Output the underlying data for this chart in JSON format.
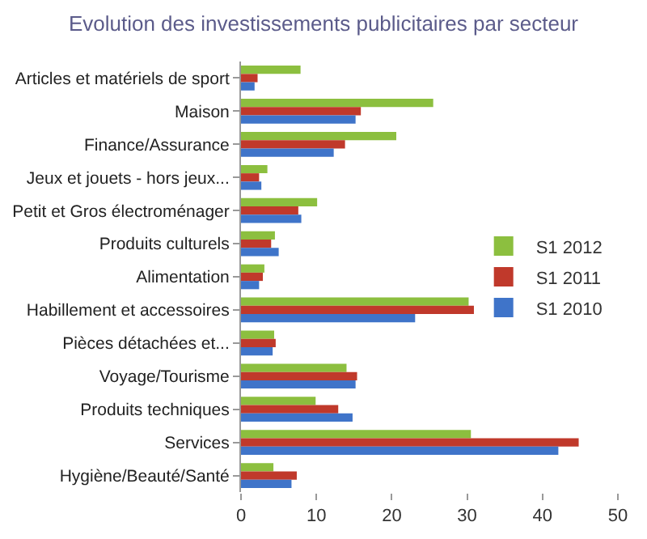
{
  "chart_data": {
    "type": "bar",
    "orientation": "horizontal",
    "title": "Evolution des investissements publicitaires par secteur",
    "categories": [
      "Articles et matériels de sport",
      "Maison",
      "Finance/Assurance",
      "Jeux et jouets - hors jeux...",
      "Petit et Gros électroménager",
      "Produits culturels",
      "Alimentation",
      "Habillement et accessoires",
      "Pièces détachées et...",
      "Voyage/Tourisme",
      "Produits techniques",
      "Services",
      "Hygiène/Beauté/Santé"
    ],
    "series": [
      {
        "name": "S1 2012",
        "color": "#8cbf3f",
        "values": [
          7.9,
          25.5,
          20.6,
          3.5,
          10.1,
          4.5,
          3.1,
          30.2,
          4.4,
          14.0,
          9.9,
          30.5,
          4.3
        ]
      },
      {
        "name": "S1 2011",
        "color": "#c0392b",
        "values": [
          2.2,
          15.9,
          13.8,
          2.4,
          7.6,
          4.0,
          2.9,
          30.9,
          4.6,
          15.4,
          12.9,
          44.8,
          7.4
        ]
      },
      {
        "name": "S1 2010",
        "color": "#3f74c9",
        "values": [
          1.8,
          15.2,
          12.3,
          2.7,
          8.0,
          5.0,
          2.4,
          23.1,
          4.2,
          15.2,
          14.8,
          42.1,
          6.7
        ]
      }
    ],
    "xlim": [
      0,
      50
    ],
    "xticks": [
      0,
      10,
      20,
      30,
      40,
      50
    ],
    "legend": "right"
  }
}
